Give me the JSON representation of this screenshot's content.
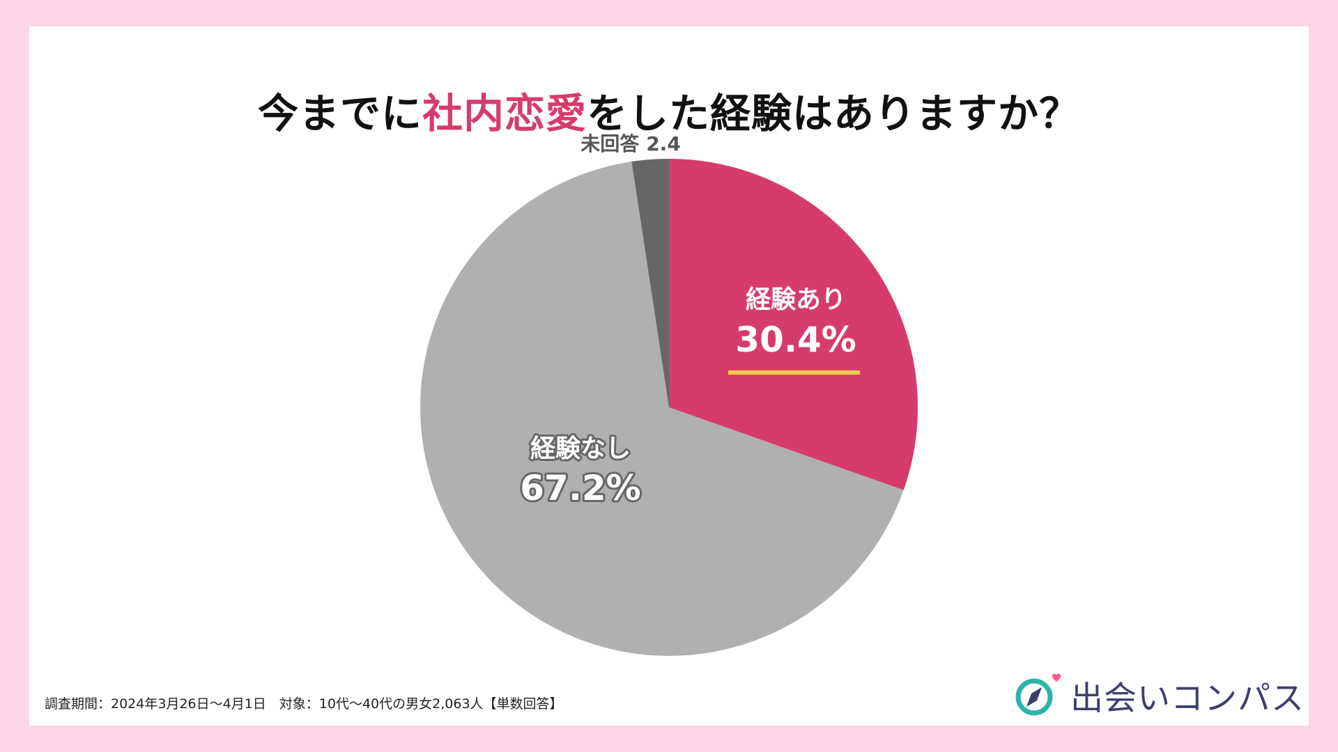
{
  "title": {
    "prefix": "今までに",
    "highlight": "社内恋愛",
    "suffix": "をした経験はありますか？"
  },
  "chart_data": {
    "type": "pie",
    "slices": [
      {
        "label": "経験あり",
        "value": 30.4,
        "display": "30.4%",
        "color": "#d63c6b",
        "label_color": "#ffffff",
        "outline_color": "#d63c6b"
      },
      {
        "label": "経験なし",
        "value": 67.2,
        "display": "67.2%",
        "color": "#b0b0b0",
        "label_color": "#ffffff",
        "outline_color": "#666666"
      },
      {
        "label": "未回答",
        "value": 2.4,
        "display": "2.4",
        "color": "#666666",
        "label_color": "#555555",
        "outline_color": null
      }
    ],
    "highlight_underline_color": "#f2c94c"
  },
  "footnote": "調査期間：2024年3月26日〜4月1日　対象：10代〜40代の男女2,063人【単数回答】",
  "logo": {
    "text": "出会いコンパス",
    "icon": "compass-heart-icon",
    "colors": {
      "ring": "#2bb5a8",
      "needle": "#3d3f6b",
      "heart": "#ff5a8c"
    }
  }
}
